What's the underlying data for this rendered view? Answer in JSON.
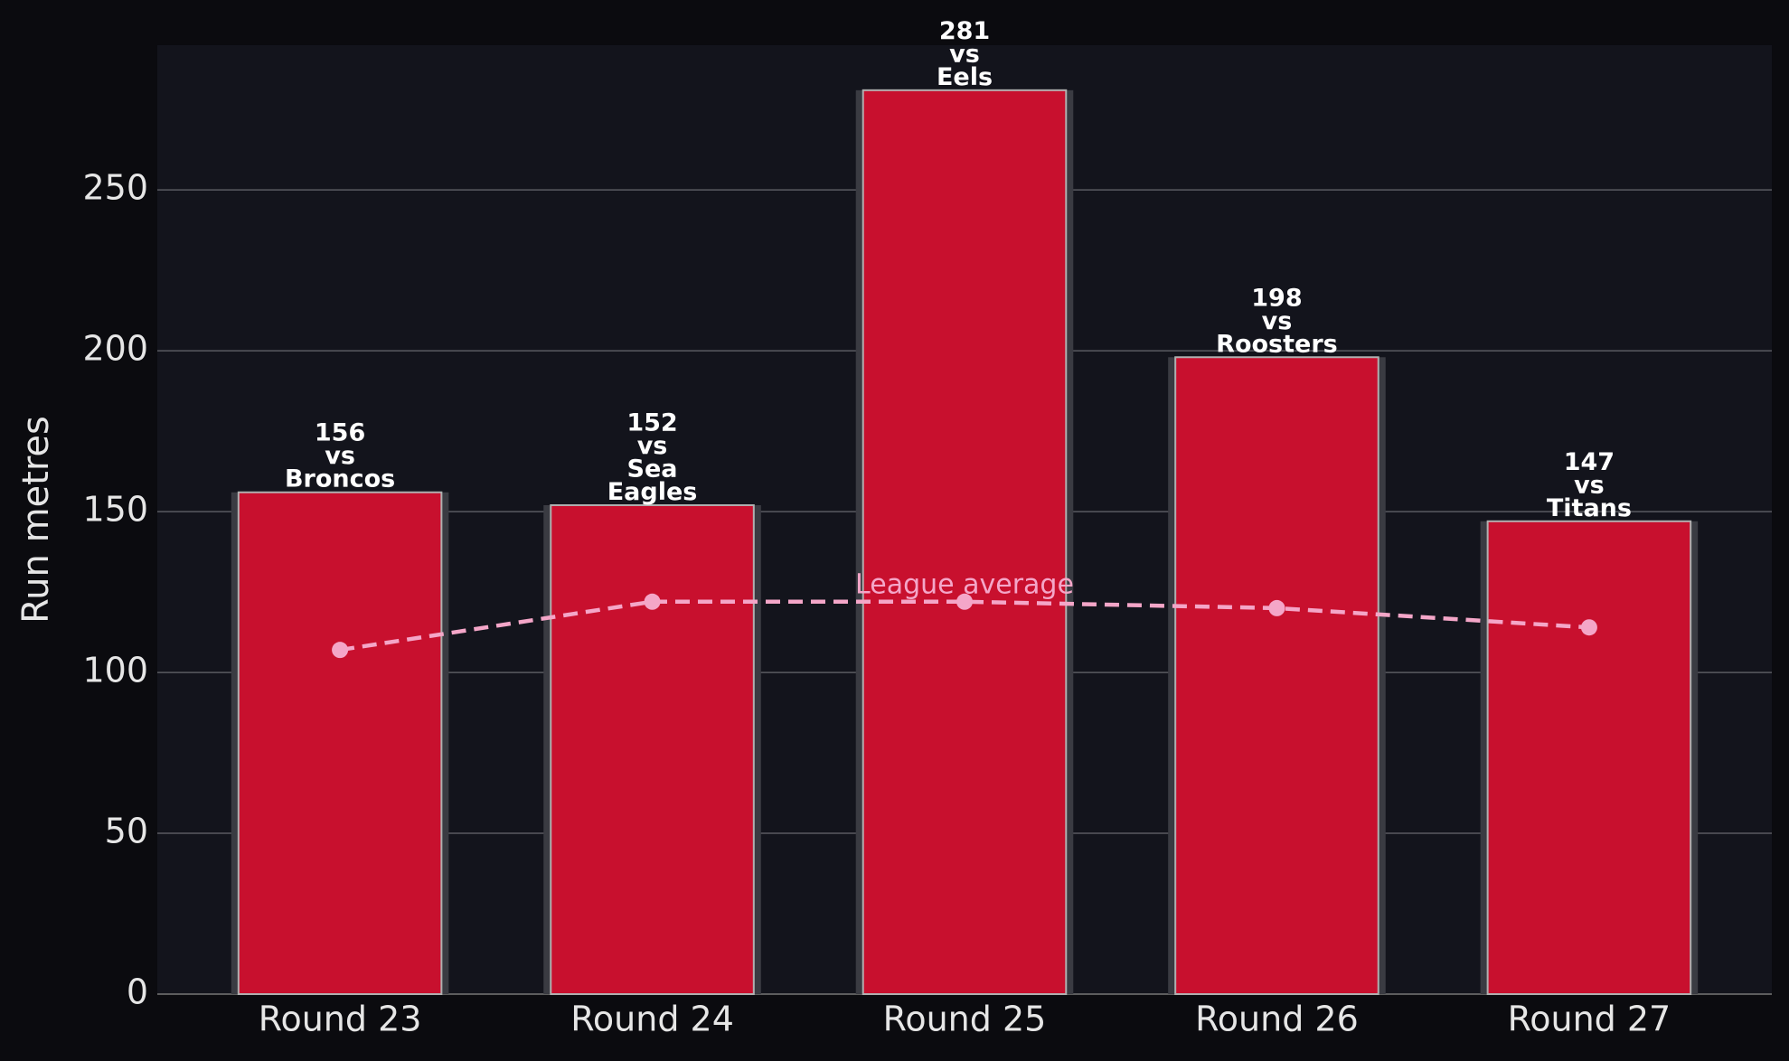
{
  "chart_data": {
    "type": "bar",
    "categories": [
      "Round 23",
      "Round 24",
      "Round 25",
      "Round 26",
      "Round 27"
    ],
    "values": [
      156,
      152,
      281,
      198,
      147
    ],
    "value_labels": [
      "156\nvs\nBroncos",
      "152\nvs\nSea\nEagles",
      "281\nvs\nEels",
      "198\nvs\nRoosters",
      "147\nvs\nTitans"
    ],
    "color": "#c8102e",
    "ylabel": "Run metres",
    "ylim": [
      0,
      295
    ],
    "yticks": [
      0,
      50,
      100,
      150,
      200,
      250
    ],
    "grid": true,
    "series": [
      {
        "name": "League average",
        "color": "#f4a6c8",
        "values": [
          107,
          122,
          122,
          120,
          114
        ]
      }
    ],
    "annotation": "League average"
  }
}
